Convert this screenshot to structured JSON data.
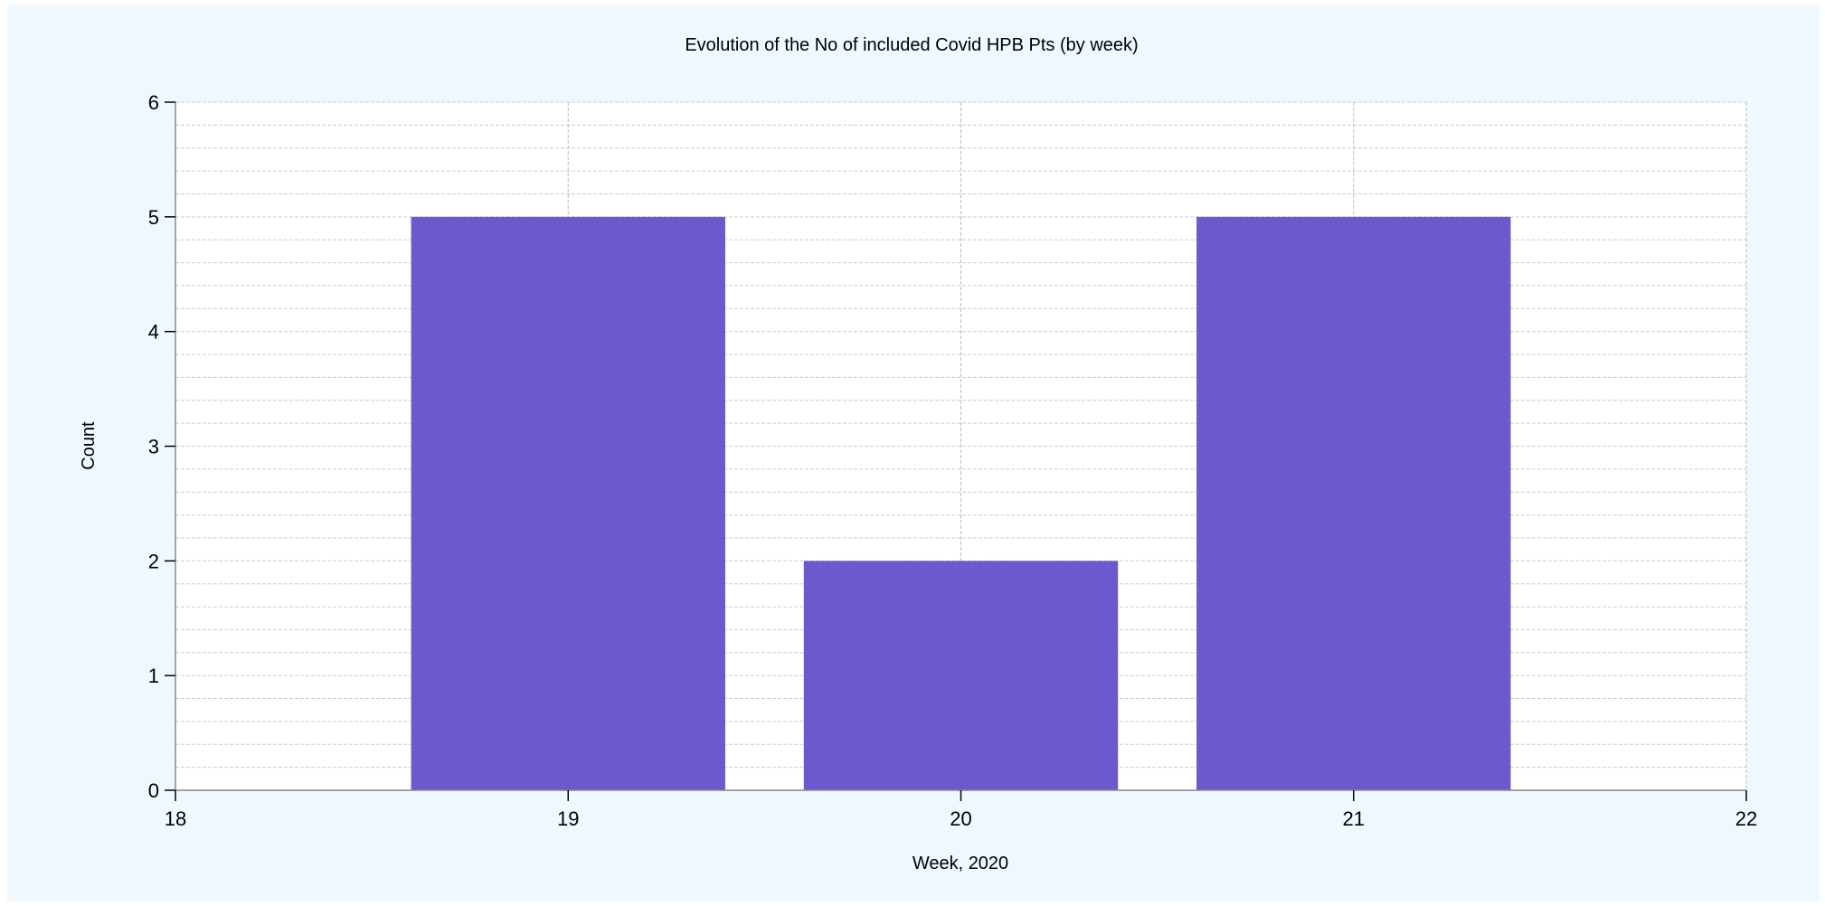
{
  "chart_data": {
    "type": "bar",
    "title": "Evolution of the No of included Covid HPB Pts (by week)",
    "xlabel": "Week, 2020",
    "ylabel": "Count",
    "x": [
      19,
      20,
      21
    ],
    "values": [
      5,
      2,
      5
    ],
    "xlim": [
      18,
      22
    ],
    "ylim": [
      0,
      6
    ],
    "x_ticks": [
      "18",
      "19",
      "20",
      "21",
      "22"
    ],
    "y_ticks": [
      "0",
      "1",
      "2",
      "3",
      "4",
      "5",
      "6"
    ],
    "grid": true,
    "legend": "none",
    "colors": {
      "bar": "#6A5ACD",
      "background": "#F0F8FF",
      "plot_area": "#FFFFFF",
      "grid_major": "#BBBBBB",
      "grid_minor": "#CCCCCC",
      "axis": "#888888"
    }
  }
}
